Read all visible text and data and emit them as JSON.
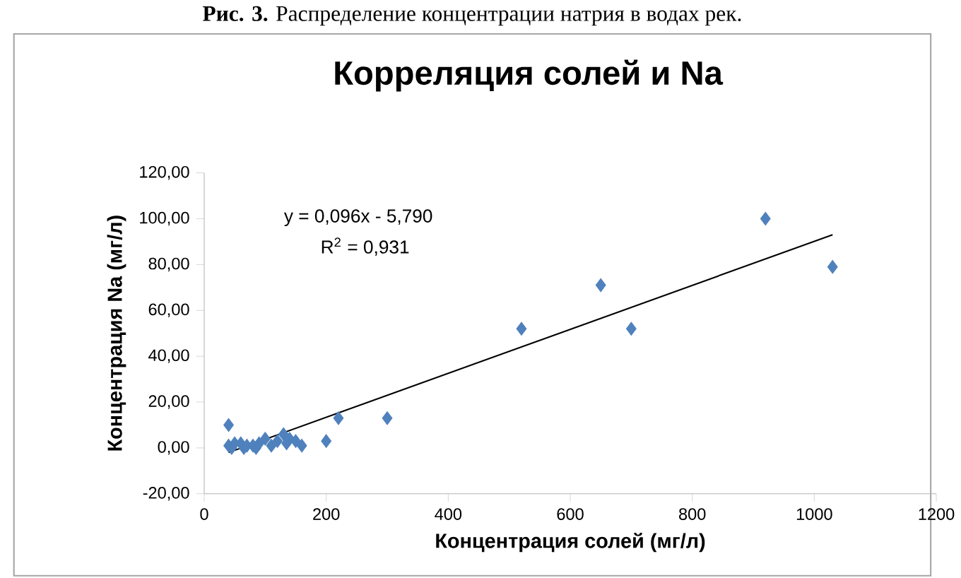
{
  "chart_data": {
    "type": "scatter",
    "title": "Корреляция солей и Na",
    "xlabel": "Концентрация солей (мг/л)",
    "ylabel": "Концентрация Na (мг/л)",
    "annotations": [
      "**Рис. 3.** Распределение концентрации натрия в водах рек.",
      "y = 0,096x - 5,790",
      "R$^{2}$ = 0,931"
    ],
    "series": [
      {
        "type": "scatter",
        "color": "#4f81bd",
        "marker": "diamond",
        "x": [
          40,
          40,
          45,
          50,
          60,
          65,
          70,
          80,
          85,
          90,
          100,
          110,
          120,
          130,
          135,
          140,
          150,
          160,
          200,
          220,
          300,
          520,
          650,
          700,
          920,
          1030
        ],
        "values": [
          10,
          1,
          0,
          2,
          2,
          0,
          1,
          1,
          0,
          2,
          4,
          1,
          3,
          6,
          2,
          4,
          3,
          1,
          3,
          13,
          13,
          52,
          71,
          52,
          100,
          79
        ]
      },
      {
        "type": "line",
        "color": "#000000",
        "marker": "none",
        "x": [
          40,
          1030
        ],
        "values": [
          -2,
          93
        ]
      }
    ],
    "xlim": [
      0,
      1200
    ],
    "xticks": [
      0,
      200,
      400,
      600,
      800,
      1000,
      1200
    ],
    "ylim": [
      -20,
      120
    ],
    "yticks": [
      {
        "value": -20,
        "label": "-20,00"
      },
      {
        "value": 0,
        "label": "0,00"
      },
      {
        "value": 20,
        "label": "20,00"
      },
      {
        "value": 40,
        "label": "40,00"
      },
      {
        "value": 60,
        "label": "60,00"
      },
      {
        "value": 80,
        "label": "80,00"
      },
      {
        "value": 100,
        "label": "100,00"
      },
      {
        "value": 120,
        "label": "120,00"
      }
    ],
    "grid": false,
    "legend": false
  }
}
